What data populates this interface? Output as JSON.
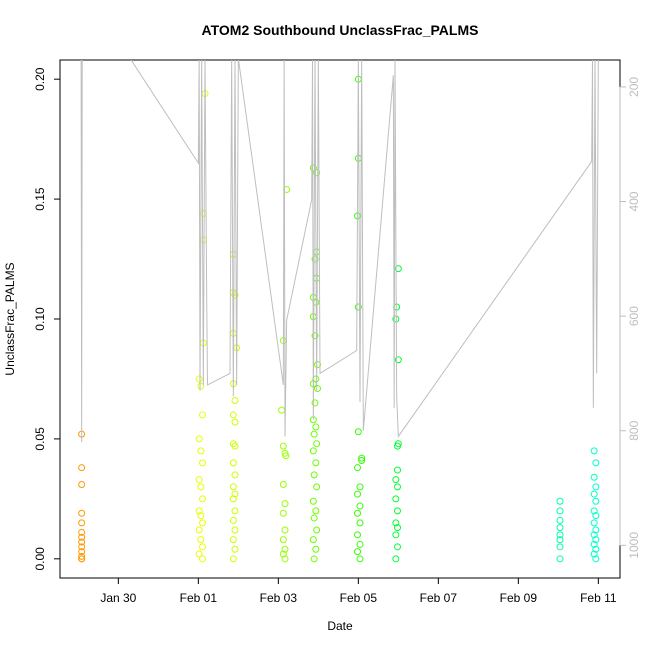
{
  "chart_data": {
    "type": "scatter",
    "title": "ATOM2 Southbound UnclassFrac_PALMS",
    "x_label": "Date",
    "y_label": "UnclassFrac_PALMS",
    "xlim": [
      "Jan 28 13:00",
      "Feb 11 13:00"
    ],
    "xticks": [
      "Jan 30",
      "Feb 01",
      "Feb 03",
      "Feb 05",
      "Feb 07",
      "Feb 09",
      "Feb 11"
    ],
    "ylim": [
      -0.008,
      0.208
    ],
    "yticks": [
      {
        "value": 0,
        "label": "0.00"
      },
      {
        "value": 0.05,
        "label": "0.05"
      },
      {
        "value": 0.1,
        "label": "0.10"
      },
      {
        "value": 0.15,
        "label": "0.15"
      },
      {
        "value": 0.2,
        "label": "0.20"
      }
    ],
    "y2lim": [
      1057,
      153
    ],
    "y2ticks": [
      200,
      400,
      600,
      800,
      1000
    ],
    "y2_color": "#bebebe",
    "series": [
      {
        "color": "#ff9900",
        "x": [
          "Jan 29 02:00",
          "Jan 29 02:00",
          "Jan 29 02:00",
          "Jan 29 02:00",
          "Jan 29 02:00",
          "Jan 29 02:00",
          "Jan 29 02:00",
          "Jan 29 02:00",
          "Jan 29 02:00",
          "Jan 29 02:00",
          "Jan 29 02:00",
          "Jan 29 02:00",
          "Jan 29 02:00"
        ],
        "values": [
          0.052,
          0.038,
          0.031,
          0.019,
          0.015,
          0.011,
          0.009,
          0.007,
          0.005,
          0.003,
          0.001,
          0,
          0
        ]
      },
      {
        "color": "#e5ff00",
        "x": [
          "Feb 01 04:00",
          "Feb 01 03:00",
          "Feb 01 03:00",
          "Feb 01 03:00",
          "Feb 01 00:30",
          "Feb 01 01:30",
          "Feb 01 02:30",
          "Feb 01 00:30",
          "Feb 01 01:30",
          "Feb 01 02:30",
          "Feb 01 00:30",
          "Feb 01 01:30",
          "Feb 01 02:30",
          "Feb 01 00:30",
          "Feb 01 01:30",
          "Feb 01 02:30",
          "Feb 01 00:30",
          "Feb 01 01:30",
          "Feb 01 02:30",
          "Feb 01 00:30",
          "Feb 01 02:30"
        ],
        "values": [
          0.194,
          0.144,
          0.133,
          0.09,
          0.075,
          0.072,
          0.06,
          0.05,
          0.045,
          0.04,
          0.033,
          0.03,
          0.025,
          0.02,
          0.018,
          0.015,
          0.012,
          0.008,
          0.005,
          0.002,
          0
        ]
      },
      {
        "color": "#ccff00",
        "x": [
          "Feb 01 21:00",
          "Feb 01 21:00",
          "Feb 01 22:00",
          "Feb 01 21:00",
          "Feb 01 23:00",
          "Feb 01 21:00",
          "Feb 01 22:00",
          "Feb 01 21:00",
          "Feb 01 22:00",
          "Feb 01 21:00",
          "Feb 01 22:00",
          "Feb 01 21:00",
          "Feb 01 22:00",
          "Feb 01 21:00",
          "Feb 01 22:00",
          "Feb 01 21:00",
          "Feb 01 22:00",
          "Feb 01 21:00",
          "Feb 01 22:00",
          "Feb 01 21:00",
          "Feb 01 22:00",
          "Feb 01 21:00"
        ],
        "values": [
          0.127,
          0.111,
          0.11,
          0.094,
          0.088,
          0.073,
          0.066,
          0.06,
          0.057,
          0.048,
          0.047,
          0.04,
          0.035,
          0.03,
          0.027,
          0.025,
          0.02,
          0.016,
          0.012,
          0.008,
          0.004,
          0
        ]
      },
      {
        "color": "#99ff00",
        "x": [
          "Feb 03 05:00",
          "Feb 03 03:00",
          "Feb 03 02:00",
          "Feb 03 03:00",
          "Feb 03 04:00",
          "Feb 03 04:30",
          "Feb 03 03:00",
          "Feb 03 04:00",
          "Feb 03 03:00",
          "Feb 03 04:00",
          "Feb 03 03:00",
          "Feb 03 04:00",
          "Feb 03 03:00",
          "Feb 03 04:00"
        ],
        "values": [
          0.154,
          0.091,
          0.062,
          0.047,
          0.044,
          0.043,
          0.031,
          0.023,
          0.019,
          0.012,
          0.008,
          0.004,
          0.002,
          0
        ]
      },
      {
        "color": "#6aff00",
        "x": [
          "Feb 03 21:00",
          "Feb 03 23:00",
          "Feb 03 23:00",
          "Feb 03 22:00",
          "Feb 03 23:00",
          "Feb 03 21:00",
          "Feb 03 22:30",
          "Feb 03 21:00",
          "Feb 03 22:00",
          "Feb 03 23:30",
          "Feb 03 22:30",
          "Feb 03 21:00",
          "Feb 03 23:30",
          "Feb 03 22:00",
          "Feb 03 21:00",
          "Feb 03 22:30",
          "Feb 03 21:30",
          "Feb 03 23:00",
          "Feb 03 21:00",
          "Feb 03 22:30",
          "Feb 03 21:30",
          "Feb 03 23:00",
          "Feb 03 21:00",
          "Feb 03 22:30",
          "Feb 03 21:30",
          "Feb 03 23:00",
          "Feb 03 21:00",
          "Feb 03 22:30",
          "Feb 03 21:30"
        ],
        "values": [
          0.163,
          0.161,
          0.128,
          0.125,
          0.117,
          0.109,
          0.107,
          0.101,
          0.093,
          0.081,
          0.075,
          0.073,
          0.071,
          0.065,
          0.058,
          0.055,
          0.052,
          0.048,
          0.045,
          0.04,
          0.035,
          0.03,
          0.024,
          0.02,
          0.017,
          0.012,
          0.008,
          0.004,
          0
        ]
      },
      {
        "color": "#33ff00",
        "x": [
          "Feb 05 00:00",
          "Feb 05 00:00",
          "Feb 04 23:30",
          "Feb 05 00:00",
          "Feb 05 00:00",
          "Feb 05 02:00",
          "Feb 05 02:00",
          "Feb 04 23:30",
          "Feb 05 01:00",
          "Feb 04 23:30",
          "Feb 05 01:00",
          "Feb 04 23:30",
          "Feb 05 01:00",
          "Feb 04 23:30",
          "Feb 05 01:00",
          "Feb 04 23:30",
          "Feb 05 01:00"
        ],
        "values": [
          0.2,
          0.167,
          0.143,
          0.105,
          0.053,
          0.042,
          0.041,
          0.038,
          0.03,
          0.027,
          0.022,
          0.019,
          0.015,
          0.01,
          0.006,
          0.003,
          0
        ]
      },
      {
        "color": "#00ff33",
        "x": [
          "Feb 06 00:00",
          "Feb 05 23:00",
          "Feb 05 22:30",
          "Feb 06 00:00",
          "Feb 06 00:00",
          "Feb 05 23:30",
          "Feb 05 23:30",
          "Feb 05 22:30",
          "Feb 05 23:30",
          "Feb 05 22:30",
          "Feb 05 23:30",
          "Feb 05 22:30",
          "Feb 05 23:30",
          "Feb 05 22:30",
          "Feb 05 23:30",
          "Feb 05 22:30"
        ],
        "values": [
          0.121,
          0.105,
          0.1,
          0.083,
          0.048,
          0.047,
          0.037,
          0.033,
          0.03,
          0.025,
          0.02,
          0.015,
          0.013,
          0.01,
          0.005,
          0
        ]
      },
      {
        "color": "#00ffaa",
        "x": [
          "Feb 10 01:00",
          "Feb 10 01:00",
          "Feb 10 01:00",
          "Feb 10 01:00",
          "Feb 10 01:00",
          "Feb 10 01:00",
          "Feb 10 01:00",
          "Feb 10 01:00"
        ],
        "values": [
          0.024,
          0.02,
          0.016,
          0.013,
          0.01,
          0.008,
          0.005,
          0
        ]
      },
      {
        "color": "#00ffcc",
        "x": [
          "Feb 10 21:30",
          "Feb 10 22:30",
          "Feb 10 21:30",
          "Feb 10 22:30",
          "Feb 10 21:30",
          "Feb 10 22:30",
          "Feb 10 21:30",
          "Feb 10 22:30",
          "Feb 10 21:30",
          "Feb 10 22:30",
          "Feb 10 21:30",
          "Feb 10 22:30",
          "Feb 10 21:30",
          "Feb 10 22:30",
          "Feb 10 21:30",
          "Feb 10 22:30"
        ],
        "values": [
          0.045,
          0.04,
          0.034,
          0.03,
          0.027,
          0.024,
          0.02,
          0.018,
          0.015,
          0.012,
          0.01,
          0.008,
          0.006,
          0.004,
          0.002,
          0
        ]
      },
      {
        "type": "line",
        "axis": "y2",
        "color": "#bebebe",
        "x": [
          "Jan 29 01:40",
          "Jan 29 02:00",
          "Jan 29 02:20",
          "Jan 30 07:00",
          "Feb 01 00:00",
          "Feb 01 00:30",
          "Feb 01 01:00",
          "Feb 01 02:00",
          "Feb 01 03:00",
          "Feb 01 04:00",
          "Feb 01 05:00",
          "Feb 01 05:30",
          "Feb 01 19:00",
          "Feb 01 20:00",
          "Feb 01 21:00",
          "Feb 01 22:00",
          "Feb 01 23:00",
          "Feb 02 00:00",
          "Feb 03 03:00",
          "Feb 03 03:30",
          "Feb 03 04:00",
          "Feb 03 05:00",
          "Feb 03 20:00",
          "Feb 03 20:30",
          "Feb 03 21:00",
          "Feb 03 22:00",
          "Feb 03 23:00",
          "Feb 04 00:00",
          "Feb 04 01:00",
          "Feb 04 23:00",
          "Feb 05 00:00",
          "Feb 05 01:00",
          "Feb 05 02:00",
          "Feb 05 03:00",
          "Feb 05 21:00",
          "Feb 05 21:30",
          "Feb 05 22:00",
          "Feb 05 23:00",
          "Feb 06 00:00",
          "Feb 10 20:00",
          "Feb 10 20:30",
          "Feb 10 21:00",
          "Feb 10 22:00",
          "Feb 10 23:00",
          "Feb 11 00:00"
        ],
        "values": [
          150,
          820,
          150,
          150,
          333,
          150,
          730,
          150,
          720,
          150,
          560,
          720,
          700,
          150,
          740,
          150,
          720,
          150,
          720,
          150,
          810,
          607,
          397,
          150,
          780,
          150,
          730,
          150,
          700,
          660,
          150,
          750,
          150,
          800,
          180,
          760,
          150,
          740,
          810,
          330,
          150,
          760,
          150,
          700,
          150
        ]
      }
    ]
  }
}
